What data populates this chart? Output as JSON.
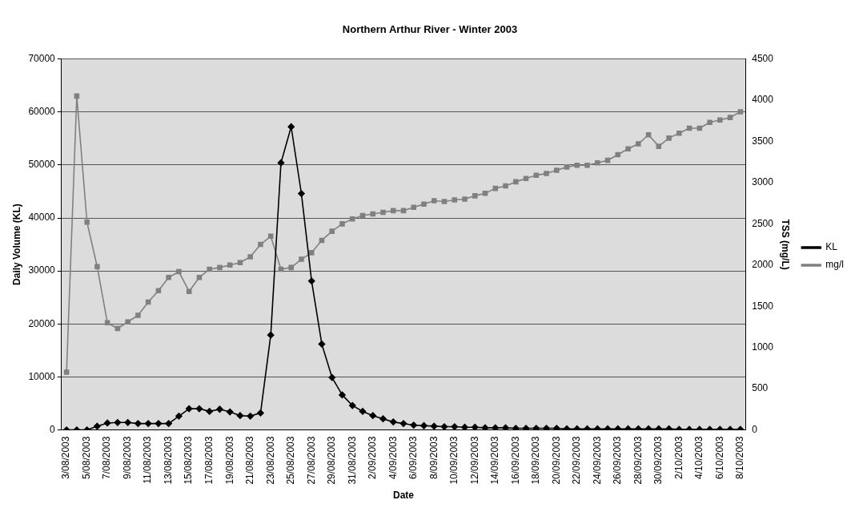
{
  "chart_data": {
    "type": "line",
    "title": "Northern Arthur River - Winter 2003",
    "xlabel": "Date",
    "ylabel": "Daily Volume (KL)",
    "y2label": "TSS (mg/L)",
    "categories": [
      "3/08/2003",
      null,
      "5/08/2003",
      null,
      "7/08/2003",
      null,
      "9/08/2003",
      null,
      "11/08/2003",
      null,
      "13/08/2003",
      null,
      "15/08/2003",
      null,
      "17/08/2003",
      null,
      "19/08/2003",
      null,
      "21/08/2003",
      null,
      "23/08/2003",
      null,
      "25/08/2003",
      null,
      "27/08/2003",
      null,
      "29/08/2003",
      null,
      "31/08/2003",
      null,
      "2/09/2003",
      null,
      "4/09/2003",
      null,
      "6/09/2003",
      null,
      "8/09/2003",
      null,
      "10/09/2003",
      null,
      "12/09/2003",
      null,
      "14/09/2003",
      null,
      "16/09/2003",
      null,
      "18/09/2003",
      null,
      "20/09/2003",
      null,
      "22/09/2003",
      null,
      "24/09/2003",
      null,
      "26/09/2003",
      null,
      "28/09/2003",
      null,
      "30/09/2003",
      null,
      "2/10/2003",
      null,
      "4/10/2003",
      null,
      "6/10/2003",
      null,
      "8/10/2003"
    ],
    "series": [
      {
        "name": "KL",
        "color": "#000000",
        "marker": "diamond",
        "values": [
          0,
          0,
          0,
          700,
          1300,
          1400,
          1400,
          1200,
          1200,
          1200,
          1200,
          2600,
          4000,
          4000,
          3500,
          3900,
          3400,
          2700,
          2600,
          3200,
          17900,
          50400,
          57200,
          44600,
          28100,
          16200,
          9900,
          6600,
          4600,
          3500,
          2700,
          2100,
          1500,
          1200,
          900,
          800,
          700,
          600,
          600,
          500,
          500,
          400,
          400,
          400,
          300,
          300,
          300,
          300,
          300,
          200,
          200,
          200,
          200,
          200,
          200,
          200,
          200,
          200,
          200,
          200,
          100,
          100,
          100,
          100,
          100,
          100,
          100
        ]
      },
      {
        "name": "mg/l",
        "color": "#808080",
        "marker": "square",
        "axis": "y2",
        "values": [
          700,
          4050,
          2520,
          1980,
          1300,
          1230,
          1310,
          1390,
          1550,
          1690,
          1850,
          1920,
          1680,
          1850,
          1950,
          1970,
          2000,
          2030,
          2100,
          2250,
          2350,
          1950,
          1970,
          2070,
          2150,
          2300,
          2410,
          2500,
          2560,
          2600,
          2620,
          2640,
          2660,
          2660,
          2700,
          2740,
          2780,
          2770,
          2790,
          2800,
          2840,
          2870,
          2930,
          2960,
          3010,
          3050,
          3090,
          3110,
          3150,
          3190,
          3210,
          3210,
          3240,
          3270,
          3340,
          3410,
          3470,
          3580,
          3440,
          3540,
          3600,
          3660,
          3660,
          3730,
          3760,
          3790,
          3860
        ]
      }
    ],
    "ylim": [
      0,
      70000
    ],
    "yticks": [
      0,
      10000,
      20000,
      30000,
      40000,
      50000,
      60000,
      70000
    ],
    "y2lim": [
      0,
      4500
    ],
    "y2ticks": [
      0,
      500,
      1000,
      1500,
      2000,
      2500,
      3000,
      3500,
      4000,
      4500
    ],
    "grid": "y",
    "legend": "right",
    "line_style": "solid"
  }
}
